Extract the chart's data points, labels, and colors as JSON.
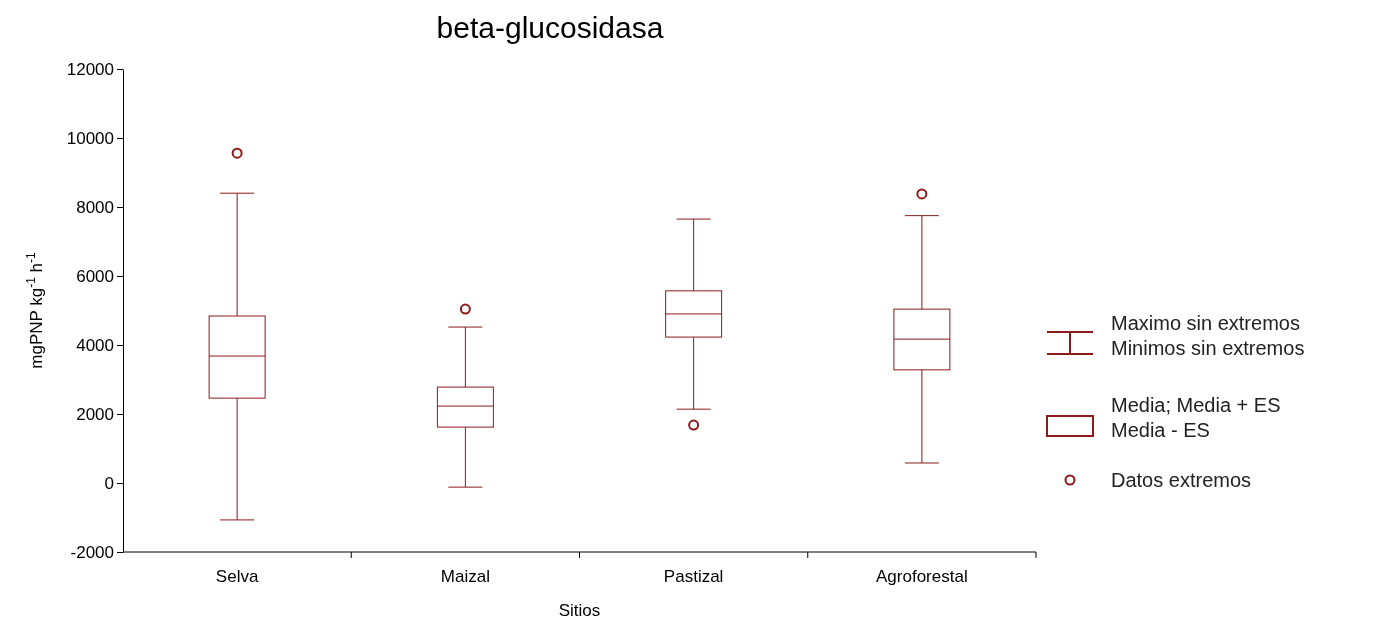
{
  "chart_data": {
    "type": "box",
    "title": "beta-glucosidasa",
    "xlabel": "Sitios",
    "ylabel": "mgPNP kg$^{-1}$ h$^{-1}$",
    "categories": [
      "Selva",
      "Maizal",
      "Pastizal",
      "Agroforestal"
    ],
    "color": "#8b1a1a",
    "boxes": [
      {
        "low": -1070,
        "q1": 2460,
        "median": 3680,
        "q3": 4840,
        "high": 8400,
        "outliers": [
          9560
        ]
      },
      {
        "low": -120,
        "q1": 1620,
        "median": 2230,
        "q3": 2780,
        "high": 4520,
        "outliers": [
          5040
        ]
      },
      {
        "low": 2140,
        "q1": 4230,
        "median": 4900,
        "q3": 5570,
        "high": 7650,
        "outliers": [
          1680
        ]
      },
      {
        "low": 580,
        "q1": 3280,
        "median": 4170,
        "q3": 5040,
        "high": 7750,
        "outliers": [
          8380
        ]
      }
    ],
    "ylim": [
      -2000,
      12000
    ],
    "yticks": [
      -2000,
      0,
      2000,
      4000,
      6000,
      8000,
      10000,
      12000
    ],
    "grid": false,
    "marker": "circle",
    "annotations": [
      "Maximo sin extremos\nMinimos sin extremos",
      "Media; Media + ES\nMedia - ES",
      "Datos extremos"
    ]
  }
}
